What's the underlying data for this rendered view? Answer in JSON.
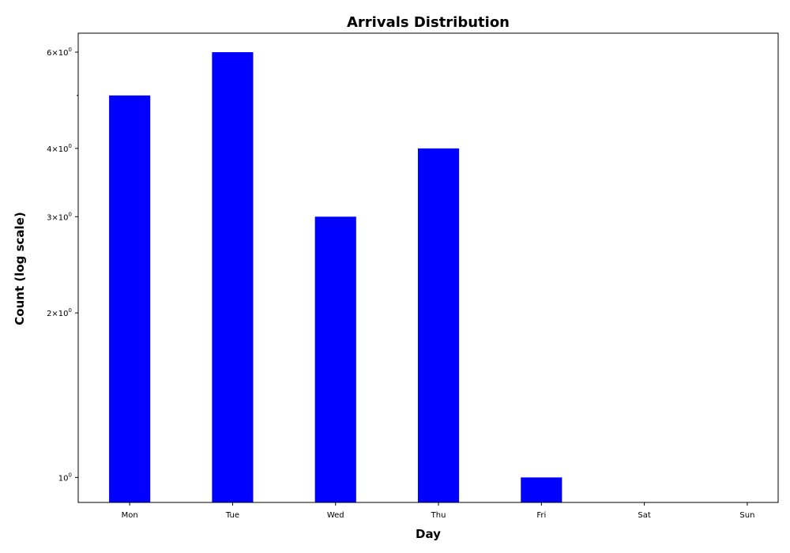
{
  "chart_data": {
    "type": "bar",
    "title": "Arrivals Distribution",
    "xlabel": "Day",
    "ylabel": "Count (log scale)",
    "yscale": "log",
    "ylim": [
      0.9,
      6.5
    ],
    "categories": [
      "Mon",
      "Tue",
      "Wed",
      "Thu",
      "Fri",
      "Sat",
      "Sun"
    ],
    "values": [
      5,
      6,
      3,
      4,
      1,
      0,
      0
    ],
    "bar_color": "#0000ff",
    "grid": false,
    "legend": "none",
    "yticks": [
      {
        "value": 1,
        "mantissa": "",
        "exponent": "0"
      },
      {
        "value": 2,
        "mantissa": "2",
        "exponent": "0"
      },
      {
        "value": 3,
        "mantissa": "3",
        "exponent": "0"
      },
      {
        "value": 4,
        "mantissa": "4",
        "exponent": "0"
      },
      {
        "value": 6,
        "mantissa": "6",
        "exponent": "0"
      }
    ],
    "minor_yticks": [
      5
    ]
  }
}
